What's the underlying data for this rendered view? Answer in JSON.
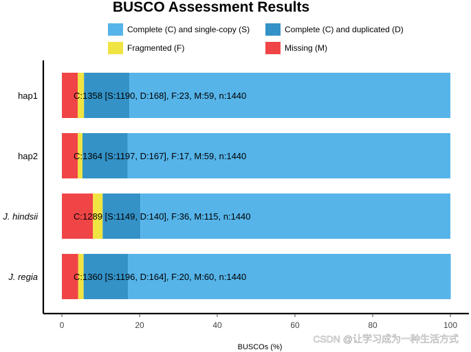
{
  "chart_data": {
    "type": "bar",
    "orientation": "horizontal",
    "stacked": true,
    "title": "BUSCO Assessment Results",
    "xlabel": "BUSCOs (%)",
    "ylabel": "",
    "xlim": [
      0,
      100
    ],
    "xticks": [
      0,
      20,
      40,
      60,
      80,
      100
    ],
    "categories": [
      {
        "name": "hap1",
        "italic": false
      },
      {
        "name": "hap2",
        "italic": false
      },
      {
        "name": "J. hindsii",
        "italic": true
      },
      {
        "name": "J. regia",
        "italic": true
      }
    ],
    "series": [
      {
        "name": "Missing (M)",
        "color": "#f04546",
        "values": [
          4.1,
          4.1,
          8.0,
          4.2
        ]
      },
      {
        "name": "Fragmented (F)",
        "color": "#f0e442",
        "values": [
          1.6,
          1.2,
          2.5,
          1.4
        ]
      },
      {
        "name": "Complete (C) and duplicated (D)",
        "color": "#3492c7",
        "values": [
          11.7,
          11.6,
          9.7,
          11.4
        ]
      },
      {
        "name": "Complete (C) and single-copy (S)",
        "color": "#56b4e9",
        "values": [
          82.6,
          83.1,
          79.8,
          83.1
        ]
      }
    ],
    "legend_order": [
      "Complete (C) and single-copy (S)",
      "Complete (C) and duplicated (D)",
      "Fragmented (F)",
      "Missing (M)"
    ],
    "legend_position": "top",
    "bar_labels": [
      "C:1358 [S:1190, D:168], F:23, M:59, n:1440",
      "C:1364 [S:1197, D:167], F:17, M:59, n:1440",
      "C:1289 [S:1149, D:140], F:36, M:115, n:1440",
      "C:1360 [S:1196, D:164], F:20, M:60, n:1440"
    ],
    "grid": false
  },
  "watermark": "CSDN @让学习成为一种生活方式"
}
